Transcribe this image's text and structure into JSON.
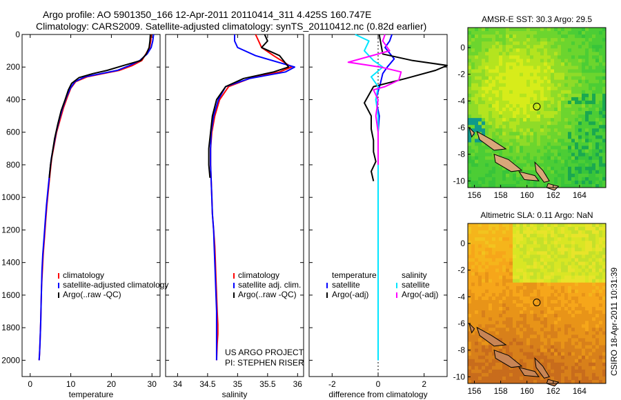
{
  "header": {
    "line1": "Argo profile: AO 5901350_166 12-Apr-2011 20110414_311 4.425S 160.747E",
    "line2": "Climatology: CARS2009. Satellite-adjusted climatology: synTS_20110412.nc (0.82d earlier)"
  },
  "side_text": "CSIRO 18-Apr-2011 10:31:39",
  "colors": {
    "climatology": "#ff0000",
    "satellite": "#0000ff",
    "argo": "#000000",
    "satellite_sal": "#00e5ff",
    "argo_sal": "#ff00ff"
  },
  "chart_data": [
    {
      "type": "line",
      "panel": "temperature",
      "xlabel": "temperature",
      "ylabel": "",
      "y_reversed": true,
      "xlim": [
        -2,
        32
      ],
      "ylim": [
        0,
        2100
      ],
      "xticks": [
        0,
        10,
        20,
        30
      ],
      "yticks": [
        0,
        200,
        400,
        600,
        800,
        1000,
        1200,
        1400,
        1600,
        1800,
        2000
      ],
      "legend_position": "lower-center",
      "series": [
        {
          "name": "climatology",
          "color": "#ff0000",
          "x": [
            29.8,
            29.7,
            29.4,
            28.5,
            27.5,
            25.2,
            22.0,
            18.0,
            14.0,
            11.2,
            10.0,
            9.2,
            8.2,
            7.4,
            6.5,
            5.9,
            5.3,
            4.9,
            4.5,
            4.1,
            3.8,
            3.5,
            3.2,
            3.0,
            2.8,
            2.7,
            2.6,
            2.5,
            2.4,
            2.3,
            2.2
          ],
          "y": [
            0,
            40,
            80,
            120,
            160,
            190,
            220,
            240,
            260,
            290,
            330,
            380,
            450,
            520,
            600,
            680,
            760,
            850,
            950,
            1050,
            1150,
            1250,
            1350,
            1450,
            1550,
            1650,
            1750,
            1830,
            1900,
            1960,
            2000
          ]
        },
        {
          "name": "satellite-adjusted climatology",
          "color": "#0000ff",
          "x": [
            30.4,
            30.2,
            29.8,
            28.8,
            27.0,
            24.5,
            21.5,
            17.5,
            13.5,
            11.0,
            9.9,
            9.0,
            8.0,
            7.2,
            6.4,
            5.8,
            5.2,
            4.8,
            4.4,
            4.0,
            3.7,
            3.4,
            3.1,
            2.9,
            2.8,
            2.7,
            2.6,
            2.5,
            2.4,
            2.3,
            2.2
          ],
          "y": [
            0,
            40,
            80,
            120,
            160,
            190,
            220,
            240,
            260,
            290,
            330,
            380,
            450,
            520,
            600,
            680,
            760,
            850,
            950,
            1050,
            1150,
            1250,
            1350,
            1450,
            1550,
            1650,
            1750,
            1830,
            1900,
            1960,
            2000
          ]
        },
        {
          "name": "Argo(..raw -QC)",
          "color": "#000000",
          "x": [
            29.6,
            29.5,
            29.3,
            28.6,
            27.2,
            23.0,
            19.0,
            15.5,
            12.0,
            10.2,
            9.4,
            8.6,
            7.6,
            6.8,
            6.0,
            5.5,
            5.0,
            4.7
          ],
          "y": [
            0,
            40,
            80,
            120,
            160,
            190,
            220,
            240,
            265,
            300,
            340,
            400,
            470,
            550,
            640,
            720,
            800,
            880
          ]
        }
      ]
    },
    {
      "type": "line",
      "panel": "salinity",
      "xlabel": "salinity",
      "ylabel": "",
      "y_reversed": true,
      "xlim": [
        33.8,
        36.1
      ],
      "ylim": [
        0,
        2100
      ],
      "xticks": [
        34,
        34.5,
        35,
        35.5,
        36
      ],
      "legend_position": "lower-center",
      "series": [
        {
          "name": "climatology",
          "color": "#ff0000",
          "x": [
            35.3,
            35.35,
            35.4,
            35.6,
            35.9,
            35.7,
            35.2,
            34.85,
            34.7,
            34.62,
            34.57,
            34.55,
            34.55,
            34.56,
            34.57,
            34.58,
            34.6,
            34.62,
            34.63,
            34.64,
            34.65,
            34.66,
            34.67,
            34.67,
            34.66,
            34.65
          ],
          "y": [
            0,
            40,
            80,
            130,
            200,
            230,
            270,
            320,
            400,
            500,
            600,
            700,
            800,
            900,
            1000,
            1100,
            1200,
            1300,
            1400,
            1500,
            1600,
            1700,
            1780,
            1840,
            1900,
            2000
          ]
        },
        {
          "name": "satellite adj. clim.",
          "color": "#0000ff",
          "x": [
            34.95,
            34.95,
            35.0,
            35.3,
            35.95,
            35.8,
            35.2,
            34.8,
            34.68,
            34.6,
            34.56,
            34.55,
            34.55,
            34.56,
            34.57,
            34.58,
            34.6,
            34.61,
            34.62,
            34.63,
            34.64,
            34.65,
            34.65,
            34.65,
            34.65,
            34.65
          ],
          "y": [
            0,
            40,
            80,
            130,
            200,
            230,
            270,
            320,
            400,
            500,
            600,
            700,
            800,
            900,
            1000,
            1100,
            1200,
            1300,
            1400,
            1500,
            1600,
            1700,
            1780,
            1840,
            1900,
            2000
          ]
        },
        {
          "name": "Argo(..raw -QC)",
          "color": "#000000",
          "x": [
            35.45,
            35.5,
            35.4,
            35.7,
            35.85,
            35.6,
            35.1,
            34.8,
            34.65,
            34.58,
            34.55,
            34.52,
            34.52,
            34.54
          ],
          "y": [
            0,
            40,
            80,
            130,
            200,
            230,
            270,
            320,
            400,
            500,
            600,
            700,
            800,
            880
          ]
        }
      ]
    },
    {
      "type": "line",
      "panel": "difference",
      "xlabel": "difference from climatology",
      "ylabel": "",
      "y_reversed": true,
      "xlim": [
        -3,
        3
      ],
      "ylim": [
        0,
        2100
      ],
      "xticks": [
        -2,
        0,
        2
      ],
      "legend_columns": [
        "temperature",
        "salinity"
      ],
      "series": [
        {
          "name": "satellite",
          "group": "temperature",
          "color": "#0000ff",
          "x": [
            0.6,
            0.5,
            0.3,
            0.7,
            0.4,
            0.2,
            0.1,
            -0.1,
            0.05,
            0.0,
            0.0,
            0.0,
            0.0,
            0.0,
            0.0,
            0.0,
            0.0,
            0.0,
            0.0,
            0.0,
            0.0,
            0.0,
            0.0,
            0.0
          ],
          "y": [
            0,
            40,
            80,
            150,
            200,
            240,
            300,
            400,
            500,
            600,
            700,
            800,
            900,
            1000,
            1100,
            1200,
            1300,
            1400,
            1500,
            1600,
            1700,
            1800,
            1900,
            2000
          ]
        },
        {
          "name": "Argo(-adj)",
          "group": "temperature",
          "color": "#000000",
          "x": [
            0.05,
            0.1,
            0.2,
            1.5,
            3.0,
            2.5,
            1.2,
            -0.2,
            -0.6,
            -0.3,
            -0.3,
            -0.2,
            -0.2,
            -0.1,
            -0.3,
            -0.2
          ],
          "y": [
            0,
            40,
            120,
            160,
            190,
            220,
            270,
            320,
            420,
            500,
            580,
            650,
            720,
            780,
            840,
            900
          ]
        },
        {
          "name": "satellite",
          "group": "salinity",
          "color": "#00e5ff",
          "x": [
            -1.0,
            -0.4,
            -0.6,
            -0.2,
            0.2,
            -0.3,
            0.0,
            -0.1,
            0.0,
            0.0,
            0.0,
            0.0,
            0.0,
            0.0,
            0.0,
            0.0,
            0.0,
            0.0,
            0.0,
            0.0,
            0.0
          ],
          "y": [
            0,
            40,
            100,
            160,
            200,
            260,
            320,
            400,
            500,
            600,
            700,
            800,
            900,
            1000,
            1200,
            1400,
            1600,
            1750,
            1850,
            1950,
            2000
          ]
        },
        {
          "name": "Argo(-adj)",
          "group": "salinity",
          "color": "#ff00ff",
          "x": [
            0.3,
            0.2,
            0.5,
            -1.3,
            0.1,
            1.0,
            0.9,
            0.3,
            -0.2,
            0.0,
            -0.1,
            0.0,
            0.0,
            0.0
          ],
          "y": [
            0,
            40,
            100,
            170,
            200,
            230,
            280,
            320,
            340,
            400,
            500,
            600,
            700,
            800
          ]
        }
      ]
    }
  ],
  "maps": [
    {
      "title": "AMSR-E SST: 30.3 Argo: 29.5",
      "type": "heatmap",
      "palette": "green",
      "xticks": [
        156,
        158,
        160,
        162,
        164
      ],
      "yticks": [
        0,
        -2,
        -4,
        -6,
        -8,
        -10
      ],
      "xlim": [
        155.5,
        166
      ],
      "ylim": [
        -10.5,
        1.5
      ],
      "argo_position": {
        "lon": 160.747,
        "lat": -4.425
      }
    },
    {
      "title": "Altimetric SLA: 0.11 Argo: NaN",
      "type": "heatmap",
      "palette": "orange",
      "xticks": [
        156,
        158,
        160,
        162,
        164
      ],
      "yticks": [
        0,
        -2,
        -4,
        -6,
        -8,
        -10
      ],
      "xlim": [
        155.5,
        166
      ],
      "ylim": [
        -10.5,
        1.5
      ],
      "argo_position": {
        "lon": 160.747,
        "lat": -4.425
      }
    }
  ],
  "annotations": [
    "US ARGO PROJECT",
    "PI: STEPHEN RISER"
  ],
  "legends": {
    "temperature": [
      "climatology",
      "satellite-adjusted climatology",
      "Argo(..raw -QC)"
    ],
    "salinity": [
      "climatology",
      "satellite adj. clim.",
      "Argo(..raw -QC)"
    ],
    "difference_headers": [
      "temperature",
      "salinity"
    ],
    "difference_temp": [
      "satellite",
      "Argo(-adj)"
    ],
    "difference_sal": [
      "satellite",
      "Argo(-adj)"
    ]
  }
}
